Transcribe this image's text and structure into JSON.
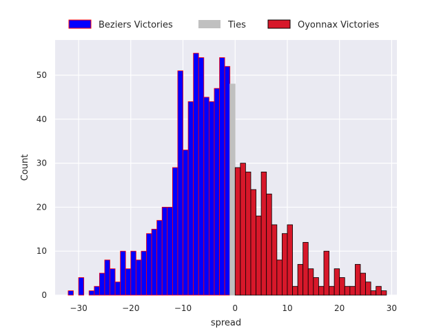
{
  "chart_data": {
    "type": "bar",
    "title": "",
    "xlabel": "spread",
    "ylabel": "Count",
    "xlim": [
      -34.5,
      31
    ],
    "ylim": [
      0,
      58
    ],
    "xticks": [
      -30,
      -20,
      -10,
      0,
      10,
      20,
      30
    ],
    "xtick_labels": [
      "−30",
      "−20",
      "−10",
      "0",
      "10",
      "20",
      "30"
    ],
    "yticks": [
      0,
      10,
      20,
      30,
      40,
      50
    ],
    "ytick_labels": [
      "0",
      "10",
      "20",
      "30",
      "40",
      "50"
    ],
    "grid": true,
    "legend_position": "top-center, above plot",
    "bin_width": 1,
    "series": [
      {
        "name": "Beziers Victories",
        "color": "#0000ff",
        "edgecolor": "#ff0000",
        "bin_start": -32,
        "values": [
          1,
          0,
          4,
          0,
          1,
          2,
          5,
          8,
          6,
          3,
          10,
          6,
          10,
          8,
          10,
          14,
          15,
          17,
          20,
          20,
          29,
          51,
          33,
          44,
          55,
          54,
          45,
          44,
          47,
          54,
          52
        ]
      },
      {
        "name": "Ties",
        "color": "#c0c0c0",
        "edgecolor": "#c0c0c0",
        "bin_start": -1,
        "values": [
          48
        ]
      },
      {
        "name": "Oyonnax Victories",
        "color": "#d7182a",
        "edgecolor": "#000000",
        "bin_start": 0,
        "values": [
          29,
          30,
          28,
          24,
          18,
          28,
          23,
          16,
          8,
          14,
          16,
          2,
          7,
          12,
          6,
          4,
          2,
          10,
          2,
          6,
          4,
          2,
          2,
          7,
          5,
          3,
          1,
          2,
          1
        ]
      }
    ]
  }
}
